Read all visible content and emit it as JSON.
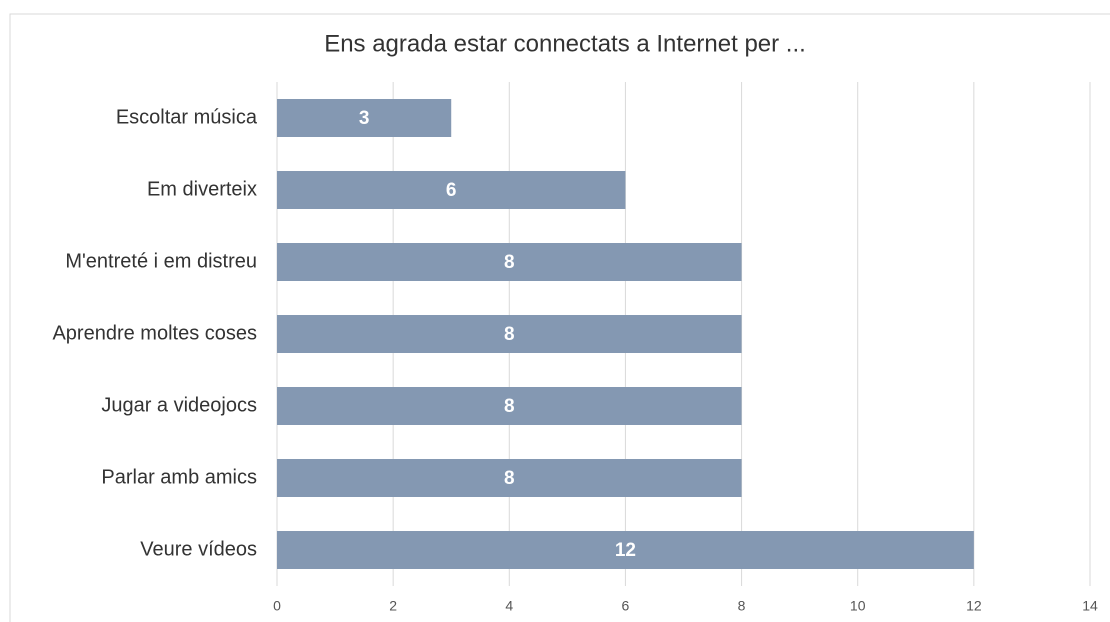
{
  "chart_data": {
    "type": "bar",
    "orientation": "horizontal",
    "title": "Ens agrada estar connectats a Internet per ...",
    "categories": [
      "Escoltar música",
      "Em diverteix",
      "M'entreté i em distreu",
      "Aprendre moltes coses",
      "Jugar a videojocs",
      "Parlar amb amics",
      "Veure vídeos"
    ],
    "values": [
      3,
      6,
      8,
      8,
      8,
      8,
      12
    ],
    "color": "#8498b2",
    "xlim": [
      0,
      14
    ],
    "xticks": [
      0,
      2,
      4,
      6,
      8,
      10,
      12,
      14
    ],
    "grid": true
  }
}
